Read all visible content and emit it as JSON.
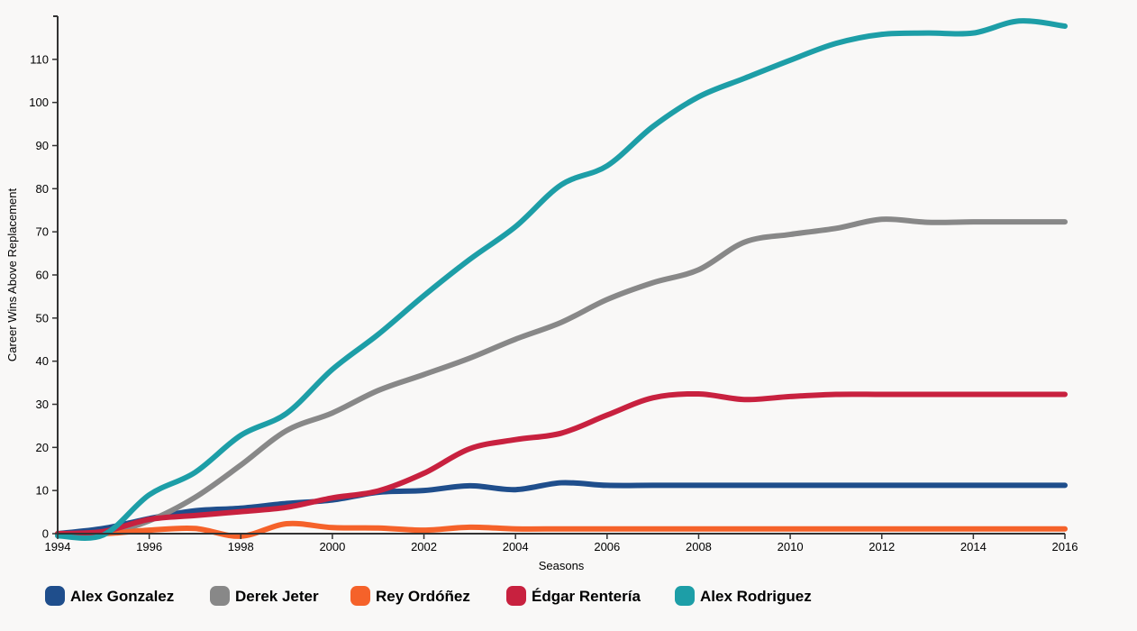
{
  "chart_data": {
    "type": "line",
    "xlabel": "Seasons",
    "ylabel": "Career Wins Above Replacement",
    "xlim": [
      1994,
      2016
    ],
    "ylim": [
      0,
      120
    ],
    "x_ticks": [
      1994,
      1996,
      1998,
      2000,
      2002,
      2004,
      2006,
      2008,
      2010,
      2012,
      2014,
      2016
    ],
    "y_ticks": [
      0,
      10,
      20,
      30,
      40,
      50,
      60,
      70,
      80,
      90,
      100,
      110
    ],
    "grid": false,
    "legend": "bottom",
    "x": [
      1994,
      1995,
      1996,
      1997,
      1998,
      1999,
      2000,
      2001,
      2002,
      2003,
      2004,
      2005,
      2006,
      2007,
      2008,
      2009,
      2010,
      2011,
      2012,
      2013,
      2014,
      2015,
      2016
    ],
    "series": [
      {
        "name": "Alex Gonzalez",
        "color": "#1f4e8c",
        "values": [
          0,
          1.2,
          3.5,
          5.3,
          5.9,
          7.0,
          7.8,
          9.6,
          10.0,
          11.1,
          10.2,
          11.8,
          11.2,
          11.2,
          11.2,
          11.2,
          11.2,
          11.2,
          11.2,
          11.2,
          11.2,
          11.2,
          11.2
        ]
      },
      {
        "name": "Derek Jeter",
        "color": "#888888",
        "values": [
          0,
          0,
          3.0,
          8.4,
          15.9,
          23.9,
          28.0,
          33.2,
          36.9,
          40.7,
          45.1,
          49.0,
          54.3,
          58.2,
          61.2,
          67.6,
          69.4,
          70.8,
          72.9,
          72.2,
          72.3,
          72.3,
          72.3
        ]
      },
      {
        "name": "Rey Ordóñez",
        "color": "#f5622a",
        "values": [
          0,
          0,
          0.8,
          1.2,
          -0.6,
          2.3,
          1.4,
          1.3,
          0.8,
          1.5,
          1.1,
          1.1,
          1.1,
          1.1,
          1.1,
          1.1,
          1.1,
          1.1,
          1.1,
          1.1,
          1.1,
          1.1,
          1.1
        ]
      },
      {
        "name": "Édgar Rentería",
        "color": "#c8213f",
        "values": [
          0,
          0.5,
          3.3,
          4.2,
          5.1,
          6.1,
          8.3,
          9.9,
          14.0,
          19.7,
          21.8,
          23.3,
          27.5,
          31.5,
          32.4,
          31.1,
          31.8,
          32.3,
          32.3,
          32.3,
          32.3,
          32.3,
          32.3
        ]
      },
      {
        "name": "Alex Rodriguez",
        "color": "#1d9ea7",
        "values": [
          -0.5,
          -0.3,
          9.0,
          14.2,
          22.8,
          27.9,
          38.1,
          46.2,
          55.2,
          63.6,
          71.2,
          80.9,
          85.3,
          94.4,
          101.3,
          105.6,
          109.8,
          113.7,
          115.8,
          116.1,
          116.1,
          118.9,
          117.7
        ]
      }
    ]
  }
}
